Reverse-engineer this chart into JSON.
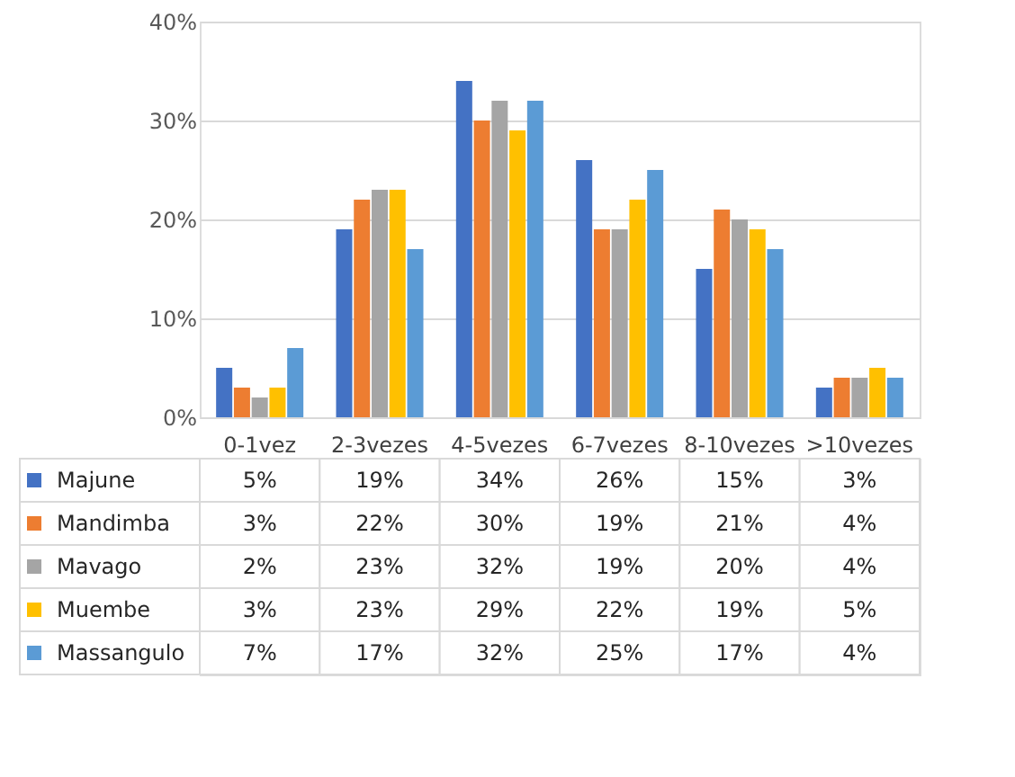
{
  "chart_data": {
    "type": "bar",
    "categories": [
      "0-1vez",
      "2-3vezes",
      "4-5vezes",
      "6-7vezes",
      "8-10vezes",
      ">10vezes"
    ],
    "series": [
      {
        "name": "Majune",
        "color": "#4472c4",
        "values": [
          5,
          19,
          34,
          26,
          15,
          3
        ],
        "value_labels": [
          "5%",
          "19%",
          "34%",
          "26%",
          "15%",
          "3%"
        ]
      },
      {
        "name": "Mandimba",
        "color": "#ed7d31",
        "values": [
          3,
          22,
          30,
          19,
          21,
          4
        ],
        "value_labels": [
          "3%",
          "22%",
          "30%",
          "19%",
          "21%",
          "4%"
        ]
      },
      {
        "name": "Mavago",
        "color": "#a5a5a5",
        "values": [
          2,
          23,
          32,
          19,
          20,
          4
        ],
        "value_labels": [
          "2%",
          "23%",
          "32%",
          "19%",
          "20%",
          "4%"
        ]
      },
      {
        "name": "Muembe",
        "color": "#ffc000",
        "values": [
          3,
          23,
          29,
          22,
          19,
          5
        ],
        "value_labels": [
          "3%",
          "23%",
          "29%",
          "22%",
          "19%",
          "5%"
        ]
      },
      {
        "name": "Massangulo",
        "color": "#5b9bd5",
        "values": [
          7,
          17,
          32,
          25,
          17,
          4
        ],
        "value_labels": [
          "7%",
          "17%",
          "32%",
          "25%",
          "17%",
          "4%"
        ]
      }
    ],
    "ylim": [
      0,
      40
    ],
    "yticks": [
      {
        "value": 0,
        "label": "0%"
      },
      {
        "value": 10,
        "label": "10%"
      },
      {
        "value": 20,
        "label": "20%"
      },
      {
        "value": 30,
        "label": "30%"
      },
      {
        "value": 40,
        "label": "40%"
      }
    ],
    "grid": "y",
    "legend": "bottom"
  }
}
